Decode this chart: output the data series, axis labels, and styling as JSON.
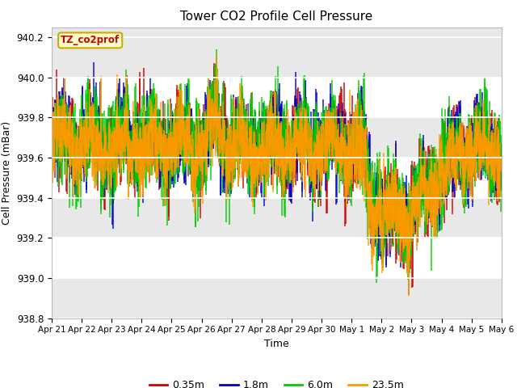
{
  "title": "Tower CO2 Profile Cell Pressure",
  "xlabel": "Time",
  "ylabel": "Cell Pressure (mBar)",
  "ylim": [
    938.8,
    940.25
  ],
  "yticks": [
    938.8,
    939.0,
    939.2,
    939.4,
    939.6,
    939.8,
    940.0,
    940.2
  ],
  "xtick_labels": [
    "Apr 21",
    "Apr 22",
    "Apr 23",
    "Apr 24",
    "Apr 25",
    "Apr 26",
    "Apr 27",
    "Apr 28",
    "Apr 29",
    "Apr 30",
    "May 1",
    "May 2",
    "May 3",
    "May 4",
    "May 5",
    "May 6"
  ],
  "legend_labels": [
    "0.35m",
    "1.8m",
    "6.0m",
    "23.5m"
  ],
  "legend_colors": [
    "#cc0000",
    "#0000cc",
    "#00cc00",
    "#ff9900"
  ],
  "annotation_text": "TZ_co2prof",
  "annotation_color": "#cc0000",
  "annotation_bg": "#ffffcc",
  "fig_bg": "#ffffff",
  "plot_bg": "#e8e8e8",
  "title_fontsize": 11,
  "n_points": 2000,
  "start_day": 0,
  "end_day": 15,
  "base_pressure": 939.67,
  "noise_amp": 0.15
}
